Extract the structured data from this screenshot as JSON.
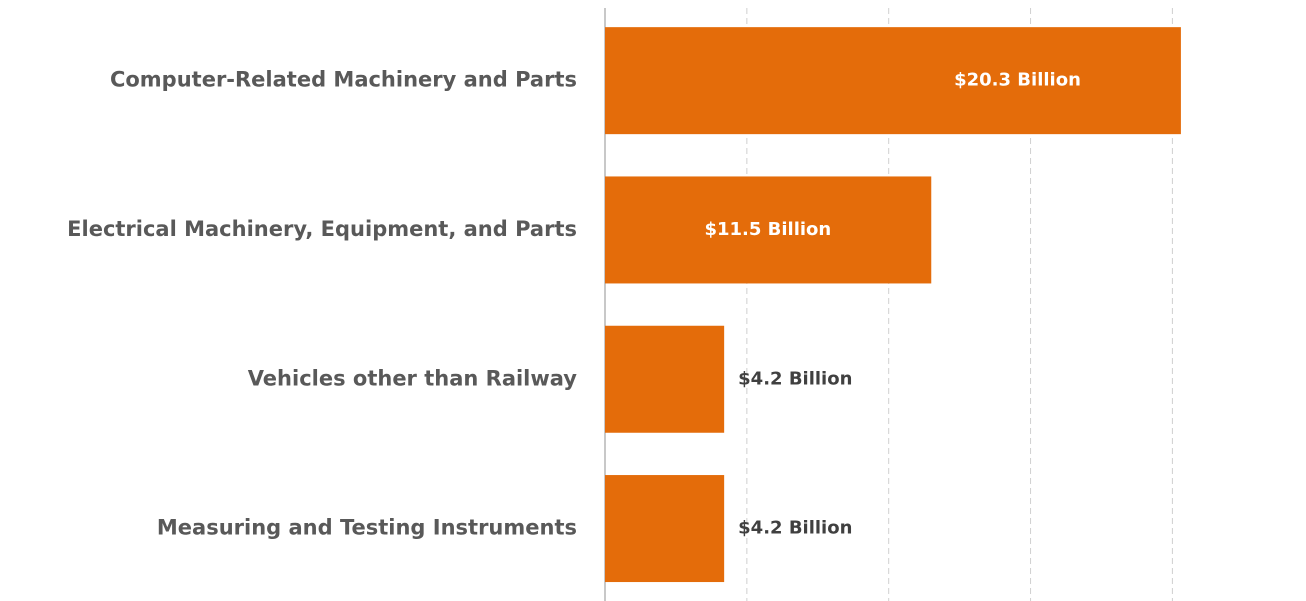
{
  "chart_data": {
    "type": "barh",
    "categories": [
      "Computer-Related Machinery and Parts",
      "Electrical Machinery, Equipment, and Parts",
      "Vehicles other than Railway",
      "Measuring and Testing Instruments"
    ],
    "values": [
      20.3,
      11.5,
      4.2,
      4.2
    ],
    "value_labels": [
      "$20.3 Billion",
      "$11.5 Billion",
      "$4.2 Billion",
      "$4.2 Billion"
    ],
    "color": "#e46c0a",
    "xlim": [
      0,
      22
    ],
    "xticks": [
      0,
      5,
      10,
      15,
      20
    ],
    "grid": true
  }
}
